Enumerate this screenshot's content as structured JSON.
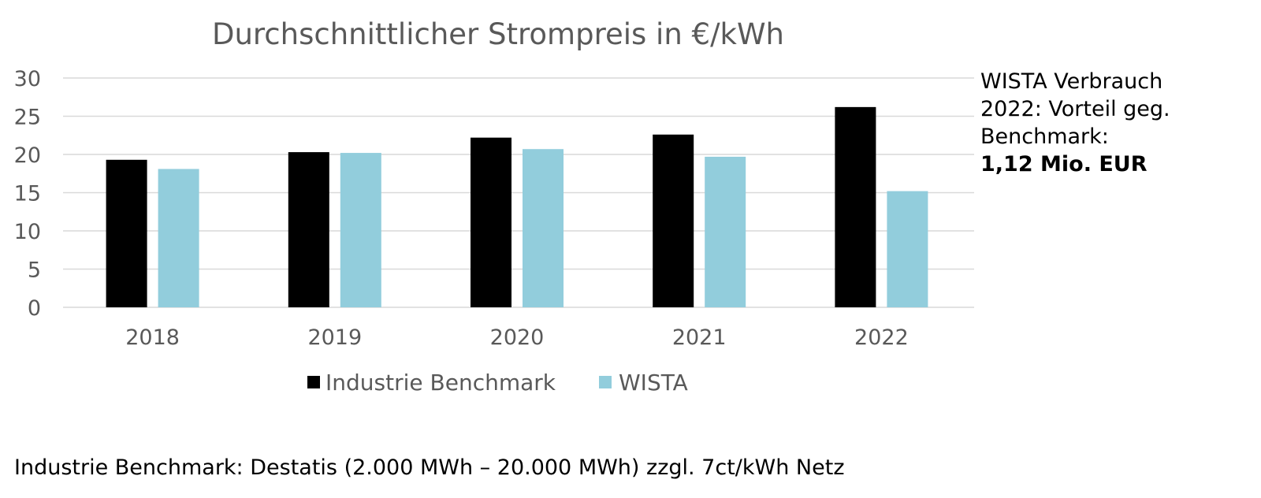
{
  "chart_data": {
    "type": "bar",
    "title": "Durchschnittlicher Strompreis in €/kWh",
    "categories": [
      "2018",
      "2019",
      "2020",
      "2021",
      "2022"
    ],
    "series": [
      {
        "name": "Industrie Benchmark",
        "color": "#000000",
        "values": [
          19.3,
          20.3,
          22.2,
          22.6,
          26.2
        ]
      },
      {
        "name": "WISTA",
        "color": "#92cddc",
        "values": [
          18.1,
          20.2,
          20.7,
          19.7,
          15.2
        ]
      }
    ],
    "ylim": [
      0,
      30
    ],
    "yticks": [
      "0",
      "5",
      "10",
      "15",
      "20",
      "25",
      "30"
    ],
    "grid": true,
    "legend_position": "bottom",
    "xlabel": "",
    "ylabel": ""
  },
  "annotation": {
    "line1": "WISTA Verbrauch",
    "line2": "2022: Vorteil geg.",
    "line3": "Benchmark:",
    "highlight": "1,12 Mio. EUR"
  },
  "footnote": "Industrie Benchmark: Destatis (2.000 MWh – 20.000 MWh) zzgl. 7ct/kWh Netz"
}
